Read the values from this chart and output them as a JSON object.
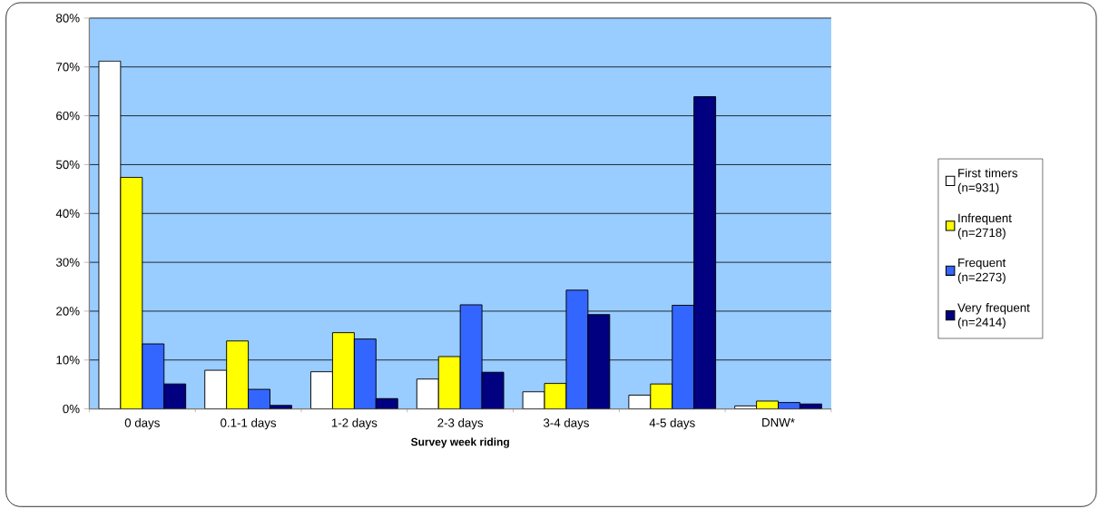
{
  "chart_data": {
    "type": "bar",
    "xlabel": "Survey week riding",
    "categories": [
      "0 days",
      "0.1-1 days",
      "1-2 days",
      "2-3 days",
      "3-4 days",
      "4-5 days",
      "DNW*"
    ],
    "series": [
      {
        "name": "First timers (n=931)",
        "color": "#ffffff",
        "values": [
          71.2,
          7.9,
          7.6,
          6.1,
          3.5,
          2.8,
          0.6
        ]
      },
      {
        "name": "Infrequent (n=2718)",
        "color": "#ffff00",
        "values": [
          47.4,
          13.9,
          15.6,
          10.7,
          5.2,
          5.1,
          1.6
        ]
      },
      {
        "name": "Frequent (n=2273)",
        "color": "#3366ff",
        "values": [
          13.3,
          4.0,
          14.3,
          21.3,
          24.3,
          21.2,
          1.3
        ]
      },
      {
        "name": "Very frequent (n=2414)",
        "color": "#000080",
        "values": [
          5.1,
          0.7,
          2.1,
          7.5,
          19.3,
          63.9,
          1.0
        ]
      }
    ],
    "ylim": [
      0,
      80
    ],
    "yticks": [
      {
        "value": 0,
        "label": "0%"
      },
      {
        "value": 10,
        "label": "10%"
      },
      {
        "value": 20,
        "label": "20%"
      },
      {
        "value": 30,
        "label": "30%"
      },
      {
        "value": 40,
        "label": "40%"
      },
      {
        "value": 50,
        "label": "50%"
      },
      {
        "value": 60,
        "label": "60%"
      },
      {
        "value": 70,
        "label": "70%"
      },
      {
        "value": 80,
        "label": "80%"
      }
    ],
    "grid": "y",
    "legend": "right"
  }
}
